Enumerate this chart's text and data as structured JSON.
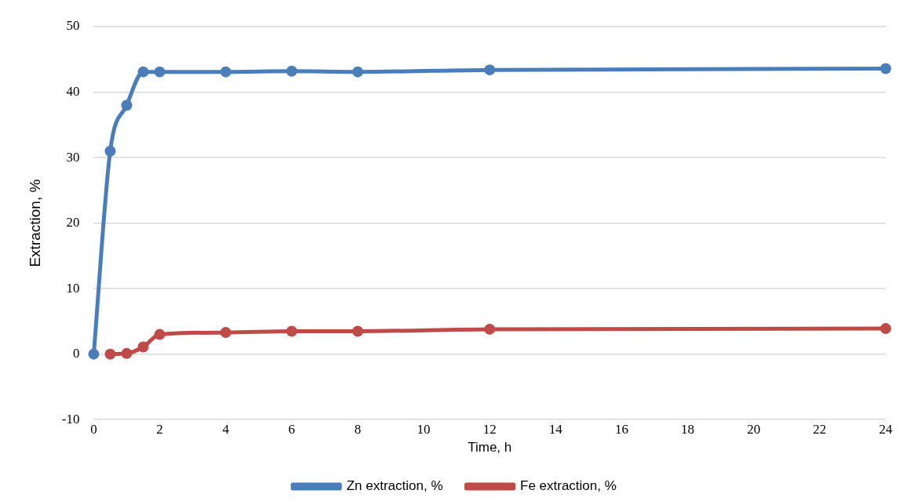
{
  "chart_data": {
    "type": "line",
    "xlabel": "Time, h",
    "ylabel": "Extraction, %",
    "xlim": [
      0,
      24
    ],
    "xticks": [
      0,
      2,
      4,
      6,
      8,
      10,
      12,
      14,
      16,
      18,
      20,
      22,
      24
    ],
    "ylim": [
      -10,
      50
    ],
    "yticks": [
      -10,
      0,
      10,
      20,
      30,
      40,
      50
    ],
    "grid": "y",
    "legend": "bottom",
    "marker": "circle",
    "line_style": "solid",
    "series": [
      {
        "name": "Zn extraction, %",
        "color": "#4a7ebb",
        "x": [
          0,
          0.5,
          1,
          1.5,
          2,
          4,
          6,
          8,
          12,
          24
        ],
        "values": [
          0,
          31,
          38,
          43.1,
          43.1,
          43.1,
          43.2,
          43.1,
          43.4,
          43.6
        ]
      },
      {
        "name": "Fe extraction, %",
        "color": "#be4b48",
        "x": [
          0.5,
          1,
          1.5,
          2,
          4,
          6,
          8,
          12,
          24
        ],
        "values": [
          0,
          0.1,
          1.1,
          3,
          3.3,
          3.5,
          3.5,
          3.8,
          3.9
        ]
      }
    ]
  }
}
